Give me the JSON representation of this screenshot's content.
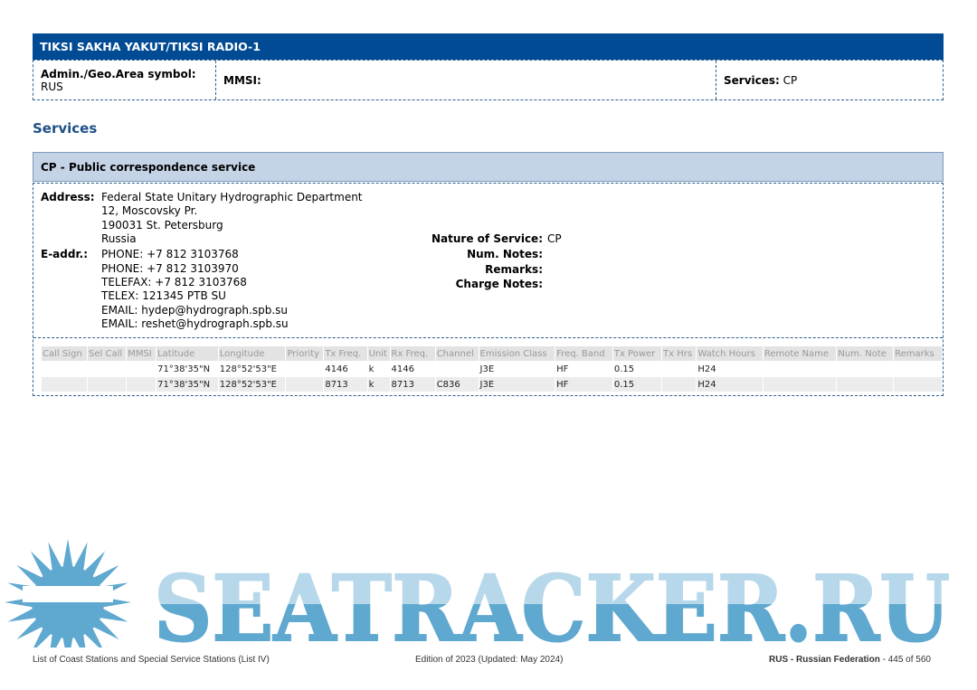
{
  "station": {
    "title": "TIKSI SAKHA YAKUT/TIKSI RADIO-1",
    "admin_label": "Admin./Geo.Area symbol:",
    "admin_value": "RUS",
    "mmsi_label": "MMSI:",
    "mmsi_value": "",
    "services_label": "Services:",
    "services_value": "CP"
  },
  "services_heading": "Services",
  "service": {
    "title": "CP - Public correspondence service",
    "address_label": "Address:",
    "address": [
      "Federal State Unitary Hydrographic Department",
      "12, Moscovsky Pr.",
      "190031 St. Petersburg",
      "Russia"
    ],
    "eaddr_label": "E-addr.:",
    "eaddr": [
      "PHONE: +7 812 3103768",
      "PHONE: +7 812 3103970",
      "TELEFAX: +7 812 3103768",
      "TELEX: 121345 PTB SU",
      "EMAIL: hydep@hydrograph.spb.su",
      "EMAIL: reshet@hydrograph.spb.su"
    ],
    "nature_label": "Nature of Service:",
    "nature_value": "CP",
    "num_notes_label": "Num. Notes:",
    "remarks_label": "Remarks:",
    "charge_notes_label": "Charge Notes:"
  },
  "table": {
    "headers": [
      "Call Sign",
      "Sel Call",
      "MMSI",
      "Latitude",
      "Longitude",
      "Priority",
      "Tx Freq.",
      "Unit",
      "Rx Freq.",
      "Channel",
      "Emission Class",
      "Freq. Band",
      "Tx Power",
      "Tx Hrs",
      "Watch Hours",
      "Remote Name",
      "Num. Note",
      "Remarks"
    ],
    "rows": [
      [
        "",
        "",
        "",
        "71°38'35\"N",
        "128°52'53\"E",
        "",
        "4146",
        "k",
        "4146",
        "",
        "J3E",
        "HF",
        "0.15",
        "",
        "H24",
        "",
        "",
        ""
      ],
      [
        "",
        "",
        "",
        "71°38'35\"N",
        "128°52'53\"E",
        "",
        "8713",
        "k",
        "8713",
        "C836",
        "J3E",
        "HF",
        "0.15",
        "",
        "H24",
        "",
        "",
        ""
      ]
    ]
  },
  "footer": {
    "left": "List of Coast Stations and Special Service Stations (List IV)",
    "center": "Edition of 2023 (Updated: May 2024)",
    "right_bold": "RUS - Russian Federation",
    "right": " - 445 of 560"
  },
  "watermark": {
    "text": "SEATRACKER.RU",
    "color": "#5fa8d0"
  }
}
